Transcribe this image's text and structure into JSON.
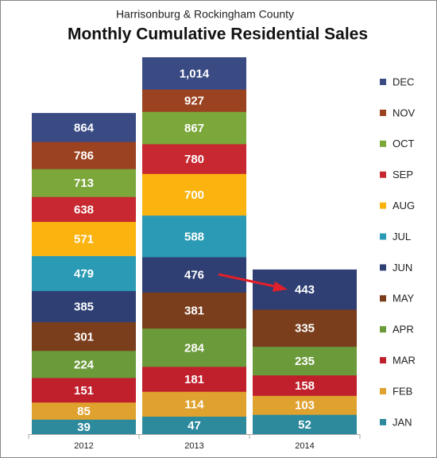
{
  "chart_data": {
    "type": "overlapping-bar",
    "subtitle": "Harrisonburg & Rockingham County",
    "title": "Monthly Cumulative Residential Sales",
    "categories": [
      "2012",
      "2013",
      "2014"
    ],
    "series": [
      {
        "name": "JAN",
        "color": "#2c8a9c",
        "values": [
          39,
          47,
          52
        ]
      },
      {
        "name": "FEB",
        "color": "#e0a22f",
        "values": [
          85,
          114,
          103
        ]
      },
      {
        "name": "MAR",
        "color": "#c01f2c",
        "values": [
          151,
          181,
          158
        ]
      },
      {
        "name": "APR",
        "color": "#6b9a3b",
        "values": [
          224,
          284,
          235
        ]
      },
      {
        "name": "MAY",
        "color": "#7a3e1c",
        "values": [
          301,
          381,
          335
        ]
      },
      {
        "name": "JUN",
        "color": "#2f3f74",
        "values": [
          385,
          476,
          443
        ]
      },
      {
        "name": "JUL",
        "color": "#2b9bb5",
        "values": [
          479,
          588,
          null
        ]
      },
      {
        "name": "AUG",
        "color": "#fbb40f",
        "values": [
          571,
          700,
          null
        ]
      },
      {
        "name": "SEP",
        "color": "#c8282f",
        "values": [
          638,
          780,
          null
        ]
      },
      {
        "name": "OCT",
        "color": "#7ba73b",
        "values": [
          713,
          867,
          null
        ]
      },
      {
        "name": "NOV",
        "color": "#9b4220",
        "values": [
          786,
          927,
          null
        ]
      },
      {
        "name": "DEC",
        "color": "#3a4b84",
        "values": [
          864,
          1014,
          null
        ],
        "value_labels": [
          "864",
          "1,014",
          null
        ]
      }
    ]
  }
}
